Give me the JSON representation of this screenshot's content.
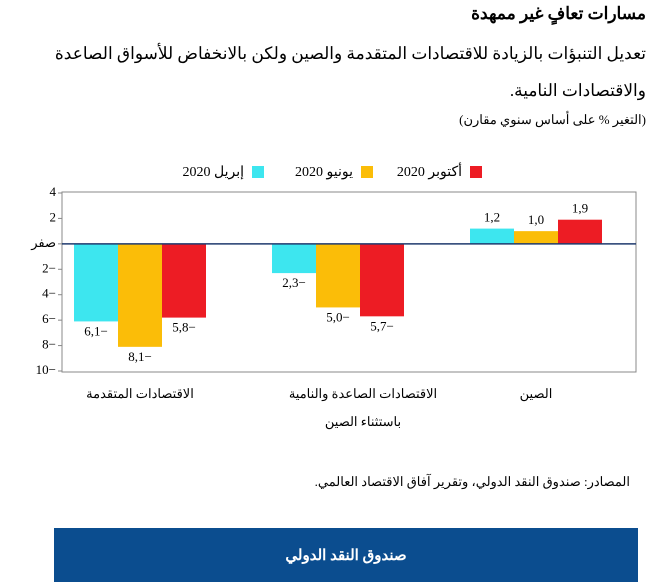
{
  "chart_data": {
    "type": "bar",
    "title": "مسارات تعافٍ غير ممهدة",
    "subtitle": "تعديل التنبؤات بالزيادة للاقتصادات المتقدمة والصين ولكن بالانخفاض للأسواق الصاعدة والاقتصادات النامية.",
    "note": "(التغير % على أساس سنوي مقارن)",
    "categories": [
      "الاقتصادات المتقدمة",
      "الاقتصادات الصاعدة والنامية باستثناء الصين",
      "الصين"
    ],
    "series": [
      {
        "name": "إبريل 2020",
        "color": "#3de6ef",
        "values": [
          -6.1,
          -2.3,
          1.2
        ],
        "value_labels": [
          "6,1−",
          "2,3−",
          "1,2"
        ]
      },
      {
        "name": "يونيو 2020",
        "color": "#fbbd08",
        "values": [
          -8.1,
          -5.0,
          1.0
        ],
        "value_labels": [
          "8,1−",
          "5,0−",
          "1,0"
        ]
      },
      {
        "name": "أكتوبر 2020",
        "color": "#ed1c24",
        "values": [
          -5.8,
          -5.7,
          1.9
        ],
        "value_labels": [
          "5,8−",
          "5,7−",
          "1,9"
        ]
      }
    ],
    "ylim": [
      -10,
      4
    ],
    "yticks": [
      4,
      2,
      {
        "value": 0,
        "label": "صفر"
      },
      {
        "value": -2,
        "label": "2−"
      },
      {
        "value": -4,
        "label": "4−"
      },
      {
        "value": -6,
        "label": "6−"
      },
      {
        "value": -8,
        "label": "8−"
      },
      {
        "value": -10,
        "label": "10−"
      }
    ],
    "source": "المصادر: صندوق النقد الدولي، وتقرير آفاق الاقتصاد العالمي.",
    "button": "صندوق النقد الدولي"
  }
}
